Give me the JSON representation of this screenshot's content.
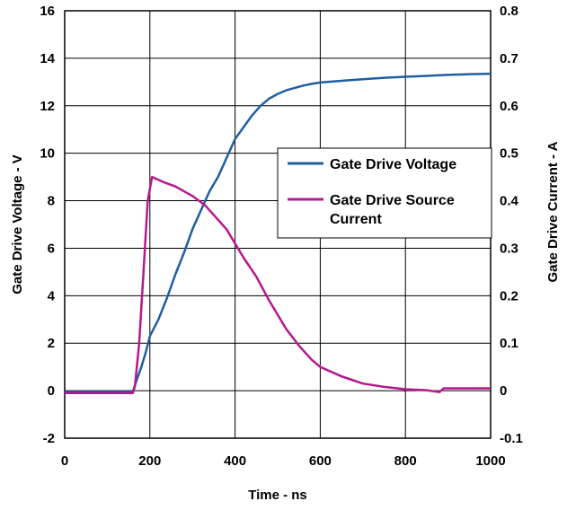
{
  "chart_data": {
    "type": "line",
    "title": "",
    "xlabel": "Time - ns",
    "ylabel_left": "Gate Drive Voltage - V",
    "ylabel_right": "Gate Drive Current - A",
    "xlim": [
      0,
      1000
    ],
    "ylim_left": [
      -2,
      16
    ],
    "ylim_right": [
      -0.1,
      0.8
    ],
    "x_ticks": [
      "0",
      "200",
      "400",
      "600",
      "800",
      "1000"
    ],
    "y_left_ticks": [
      "-2",
      "0",
      "2",
      "4",
      "6",
      "8",
      "10",
      "12",
      "14",
      "16"
    ],
    "y_right_ticks": [
      "-0.1",
      "0",
      "0.1",
      "0.2",
      "0.3",
      "0.4",
      "0.5",
      "0.6",
      "0.7",
      "0.8"
    ],
    "grid": true,
    "legend_position": "right",
    "series": [
      {
        "name": "Gate Drive Voltage",
        "axis": "left",
        "color": "#1f5fa0",
        "x": [
          0,
          160,
          170,
          180,
          190,
          200,
          220,
          240,
          260,
          280,
          300,
          320,
          340,
          360,
          380,
          400,
          420,
          440,
          460,
          480,
          500,
          520,
          540,
          560,
          580,
          600,
          650,
          700,
          750,
          800,
          850,
          900,
          950,
          1000
        ],
        "y": [
          -0.05,
          -0.05,
          0.5,
          1.0,
          1.6,
          2.3,
          3.0,
          3.9,
          4.9,
          5.8,
          6.8,
          7.6,
          8.4,
          9.0,
          9.8,
          10.6,
          11.1,
          11.6,
          12.0,
          12.3,
          12.5,
          12.65,
          12.75,
          12.85,
          12.92,
          12.98,
          13.05,
          13.12,
          13.18,
          13.22,
          13.26,
          13.3,
          13.33,
          13.35
        ]
      },
      {
        "name": "Gate Drive Source Current",
        "axis": "right",
        "color": "#b5188f",
        "x": [
          0,
          160,
          165,
          175,
          185,
          195,
          205,
          230,
          260,
          300,
          330,
          350,
          380,
          400,
          420,
          450,
          480,
          500,
          520,
          550,
          580,
          600,
          650,
          700,
          750,
          800,
          850,
          880,
          890,
          900,
          950,
          1000
        ],
        "y": [
          -0.005,
          -0.005,
          0.01,
          0.1,
          0.25,
          0.4,
          0.45,
          0.44,
          0.43,
          0.41,
          0.39,
          0.37,
          0.34,
          0.31,
          0.28,
          0.24,
          0.19,
          0.16,
          0.13,
          0.095,
          0.065,
          0.05,
          0.03,
          0.015,
          0.008,
          0.003,
          0.001,
          -0.003,
          0.005,
          0.005,
          0.005,
          0.005
        ]
      }
    ]
  }
}
